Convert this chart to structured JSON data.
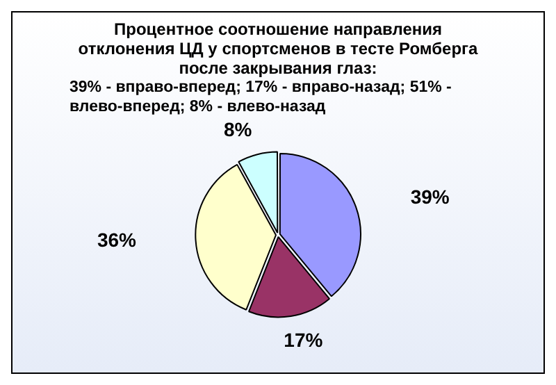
{
  "chart_data": {
    "type": "pie",
    "title": "Процентное соотношение направления отклонения ЦД у спортсменов в тесте Ромберга после закрывания глаз:",
    "subtitle": "39% - вправо-вперед; 17% - вправо-назад; 51% - влево-вперед; 8% - влево-назад",
    "categories": [
      null,
      null,
      null,
      null
    ],
    "values": [
      39,
      17,
      36,
      8
    ],
    "colors": [
      "#9999ff",
      "#993366",
      "#ffffcc",
      "#ccffff"
    ],
    "value_labels": [
      "39%",
      "17%",
      "36%",
      "8%"
    ],
    "legend": false
  }
}
